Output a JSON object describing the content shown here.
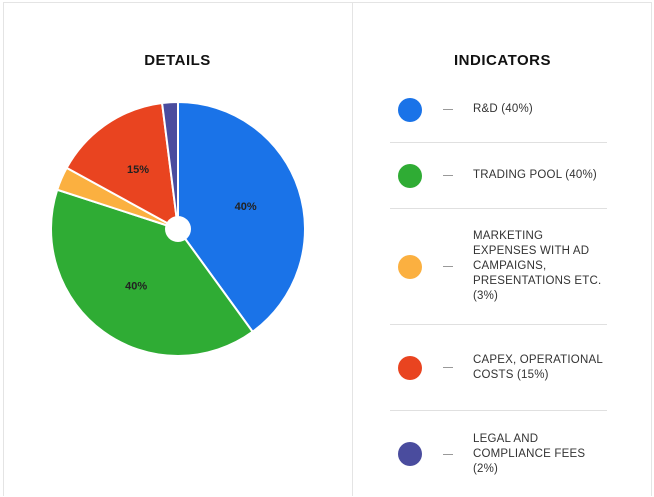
{
  "details_title": "DETAILS",
  "indicators_title": "INDICATORS",
  "chart_data": {
    "type": "pie",
    "title": "DETAILS",
    "slices": [
      {
        "label": "R&D",
        "value": 40,
        "color": "#1a73e8",
        "text": "40%"
      },
      {
        "label": "TRADING POOL",
        "value": 40,
        "color": "#2fac34",
        "text": "40%"
      },
      {
        "label": "MARKETING EXPENSES WITH AD CAMPAIGNS, PRESENTATIONS ETC.",
        "value": 3,
        "color": "#fbb040",
        "text": ""
      },
      {
        "label": "CAPEX, OPERATIONAL COSTS",
        "value": 15,
        "color": "#e94420",
        "text": "15%"
      },
      {
        "label": "LEGAL AND COMPLIANCE FEES",
        "value": 2,
        "color": "#4a4c9e",
        "text": ""
      }
    ],
    "legend_title": "INDICATORS",
    "legend_placement": "right"
  },
  "legend": [
    {
      "text": "R&D (40%)",
      "color": "#1a73e8"
    },
    {
      "text": "TRADING POOL (40%)",
      "color": "#2fac34"
    },
    {
      "text": "MARKETING EXPENSES WITH AD CAMPAIGNS, PRESENTATIONS ETC. (3%)",
      "color": "#fbb040"
    },
    {
      "text": "CAPEX, OPERATIONAL COSTS (15%)",
      "color": "#e94420"
    },
    {
      "text": "LEGAL AND COMPLIANCE FEES (2%)",
      "color": "#4a4c9e"
    }
  ]
}
